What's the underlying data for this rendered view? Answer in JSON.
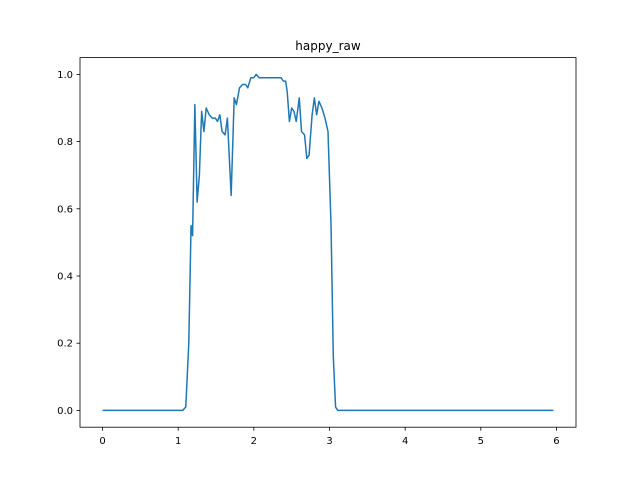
{
  "chart_data": {
    "type": "line",
    "title": "happy_raw",
    "x": [
      0,
      1.06,
      1.1,
      1.14,
      1.17,
      1.19,
      1.22,
      1.25,
      1.28,
      1.31,
      1.34,
      1.37,
      1.41,
      1.45,
      1.49,
      1.52,
      1.55,
      1.58,
      1.62,
      1.65,
      1.7,
      1.74,
      1.77,
      1.81,
      1.85,
      1.89,
      1.92,
      1.96,
      2.0,
      2.03,
      2.07,
      2.36,
      2.39,
      2.42,
      2.44,
      2.47,
      2.5,
      2.53,
      2.56,
      2.6,
      2.63,
      2.67,
      2.7,
      2.73,
      2.77,
      2.8,
      2.83,
      2.86,
      2.9,
      2.94,
      2.98,
      3.02,
      3.05,
      3.08,
      3.11,
      5.96
    ],
    "series": [
      {
        "color": "#1f77b4",
        "values": [
          0,
          0,
          0.01,
          0.2,
          0.55,
          0.52,
          0.91,
          0.62,
          0.7,
          0.89,
          0.83,
          0.9,
          0.88,
          0.87,
          0.87,
          0.86,
          0.88,
          0.83,
          0.82,
          0.87,
          0.64,
          0.93,
          0.91,
          0.96,
          0.97,
          0.97,
          0.96,
          0.99,
          0.99,
          1.0,
          0.99,
          0.99,
          0.98,
          0.98,
          0.95,
          0.86,
          0.9,
          0.89,
          0.86,
          0.93,
          0.83,
          0.82,
          0.75,
          0.76,
          0.88,
          0.93,
          0.88,
          0.92,
          0.9,
          0.87,
          0.83,
          0.55,
          0.16,
          0.01,
          0,
          0
        ]
      }
    ],
    "xlim": [
      -0.298,
      6.258
    ],
    "xticks": [
      0,
      1,
      2,
      3,
      4,
      5,
      6
    ],
    "ylim": [
      -0.05,
      1.05
    ],
    "yticks": [
      {
        "value": 0,
        "label": "0.0"
      },
      {
        "value": 0.2,
        "label": "0.2"
      },
      {
        "value": 0.4,
        "label": "0.4"
      },
      {
        "value": 0.6,
        "label": "0.6"
      },
      {
        "value": 0.8,
        "label": "0.8"
      },
      {
        "value": 1,
        "label": "1.0"
      }
    ]
  }
}
